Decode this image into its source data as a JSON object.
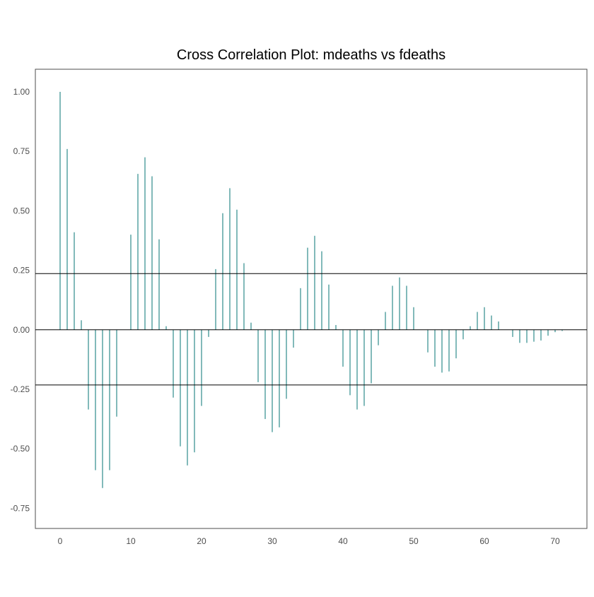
{
  "chart_data": {
    "type": "bar",
    "title": "Cross Correlation Plot: mdeaths vs fdeaths",
    "xlabel": "",
    "ylabel": "",
    "xlim": [
      -3.5,
      74.5
    ],
    "ylim": [
      -0.835,
      1.095
    ],
    "xticks": [
      0,
      10,
      20,
      30,
      40,
      50,
      60,
      70
    ],
    "xtick_labels": [
      "0",
      "10",
      "20",
      "30",
      "40",
      "50",
      "60",
      "70"
    ],
    "yticks": [
      -0.75,
      -0.5,
      -0.25,
      0.0,
      0.25,
      0.5,
      0.75,
      1.0
    ],
    "ytick_labels": [
      "-0.75",
      "-0.50",
      "-0.25",
      "0.00",
      "0.25",
      "0.50",
      "0.75",
      "1.00"
    ],
    "grid": false,
    "bar_color": "#2e8b8b",
    "ref_line_color": "#000000",
    "confidence_bounds": [
      0.236,
      -0.232
    ],
    "zero_line": 0,
    "lags": [
      0,
      1,
      2,
      3,
      4,
      5,
      6,
      7,
      8,
      9,
      10,
      11,
      12,
      13,
      14,
      15,
      16,
      17,
      18,
      19,
      20,
      21,
      22,
      23,
      24,
      25,
      26,
      27,
      28,
      29,
      30,
      31,
      32,
      33,
      34,
      35,
      36,
      37,
      38,
      39,
      40,
      41,
      42,
      43,
      44,
      45,
      46,
      47,
      48,
      49,
      50,
      51,
      52,
      53,
      54,
      55,
      56,
      57,
      58,
      59,
      60,
      61,
      62,
      63,
      64,
      65,
      66,
      67,
      68,
      69,
      70,
      71
    ],
    "values": [
      1.0,
      0.76,
      0.41,
      0.04,
      -0.335,
      -0.59,
      -0.665,
      -0.59,
      -0.365,
      0.0,
      0.4,
      0.655,
      0.725,
      0.645,
      0.38,
      0.015,
      -0.285,
      -0.49,
      -0.57,
      -0.515,
      -0.32,
      -0.03,
      0.255,
      0.49,
      0.595,
      0.505,
      0.28,
      0.03,
      -0.22,
      -0.375,
      -0.43,
      -0.41,
      -0.29,
      -0.075,
      0.175,
      0.345,
      0.395,
      0.33,
      0.19,
      0.02,
      -0.155,
      -0.275,
      -0.335,
      -0.32,
      -0.225,
      -0.065,
      0.075,
      0.185,
      0.22,
      0.185,
      0.095,
      0.0,
      -0.095,
      -0.155,
      -0.18,
      -0.175,
      -0.12,
      -0.04,
      0.015,
      0.075,
      0.095,
      0.06,
      0.035,
      0.0,
      -0.03,
      -0.055,
      -0.055,
      -0.05,
      -0.045,
      -0.025,
      -0.01,
      -0.005
    ]
  }
}
